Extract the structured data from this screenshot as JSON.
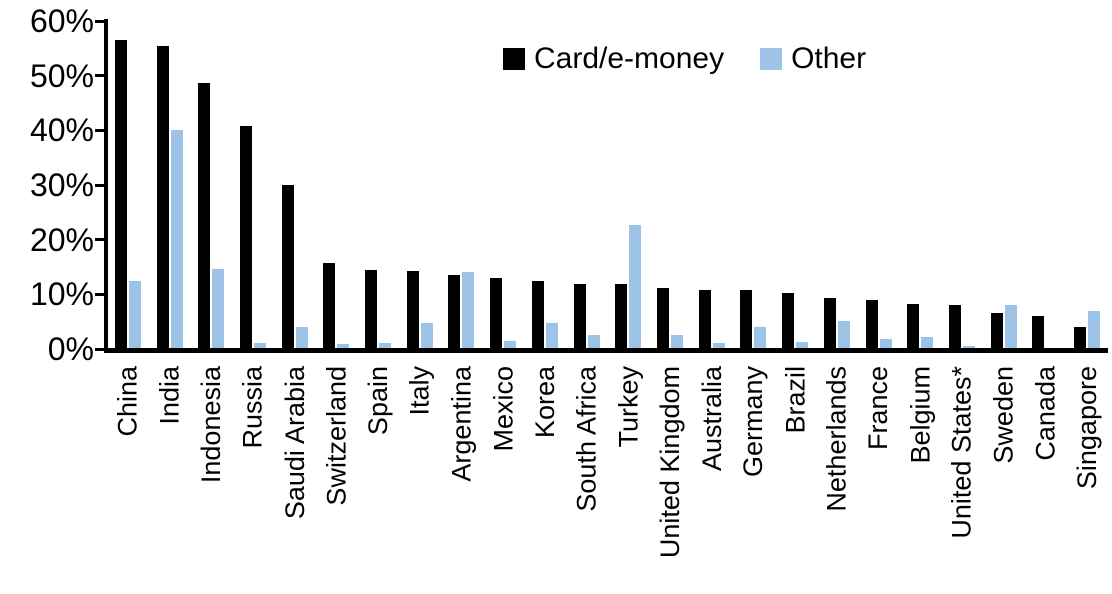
{
  "chart_data": {
    "type": "bar",
    "title": "",
    "xlabel": "",
    "ylabel": "",
    "ylim": [
      0,
      60
    ],
    "yticks": [
      {
        "label": "60%",
        "value": 60
      },
      {
        "label": "50%",
        "value": 50
      },
      {
        "label": "40%",
        "value": 40
      },
      {
        "label": "30%",
        "value": 30
      },
      {
        "label": "20%",
        "value": 20
      },
      {
        "label": "10%",
        "value": 10
      },
      {
        "label": "0%",
        "value": 0
      }
    ],
    "grid": false,
    "legend_position": "top-center",
    "categories": [
      "China",
      "India",
      "Indonesia",
      "Russia",
      "Saudi Arabia",
      "Switzerland",
      "Spain",
      "Italy",
      "Argentina",
      "Mexico",
      "Korea",
      "South Africa",
      "Turkey",
      "United Kingdom",
      "Australia",
      "Germany",
      "Brazil",
      "Netherlands",
      "France",
      "Belgium",
      "United States*",
      "Sweden",
      "Canada",
      "Singapore"
    ],
    "series": [
      {
        "name": "Card/e-money",
        "color": "#000000",
        "values": [
          56.3,
          55.2,
          48.4,
          40.7,
          29.9,
          15.6,
          14.2,
          14.1,
          13.4,
          12.9,
          12.2,
          11.8,
          11.7,
          11.0,
          10.7,
          10.6,
          10.0,
          9.2,
          8.7,
          8.1,
          7.8,
          6.5,
          5.9,
          3.8
        ]
      },
      {
        "name": "Other",
        "color": "#9DC3E6",
        "values": [
          12.3,
          39.8,
          14.5,
          1.0,
          3.9,
          0.8,
          1.0,
          4.6,
          14.0,
          1.3,
          4.6,
          2.4,
          22.6,
          2.3,
          1.0,
          3.9,
          1.1,
          4.9,
          1.6,
          2.0,
          0.4,
          7.9,
          0.0,
          6.8
        ]
      }
    ]
  }
}
